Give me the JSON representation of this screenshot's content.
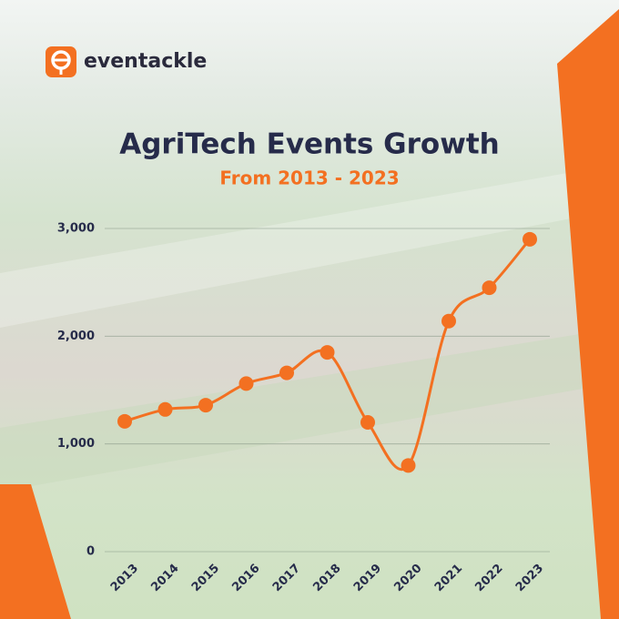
{
  "brand": "eventackle",
  "chart_data": {
    "type": "line",
    "title": "AgriTech Events Growth",
    "subtitle": "From 2013 - 2023",
    "categories": [
      "2013",
      "2014",
      "2015",
      "2016",
      "2017",
      "2018",
      "2019",
      "2020",
      "2021",
      "2022",
      "2023"
    ],
    "values": [
      1210,
      1320,
      1360,
      1560,
      1660,
      1850,
      1200,
      800,
      2140,
      2450,
      2900
    ],
    "color": "#f37021",
    "ylim": [
      0,
      3000
    ],
    "yticks": [
      0,
      {
        "value": 1000,
        "label": "1,000"
      },
      {
        "value": 2000,
        "label": "2,000"
      },
      {
        "value": 3000,
        "label": "3,000"
      }
    ],
    "grid": true
  }
}
